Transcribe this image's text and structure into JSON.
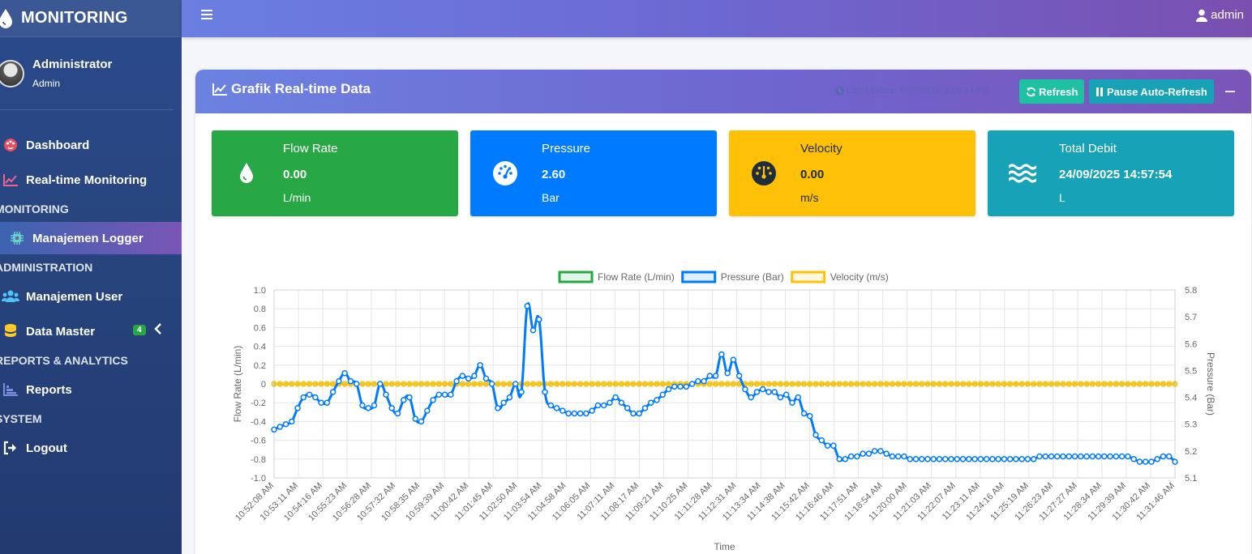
{
  "brand": {
    "title": "MONITORING"
  },
  "user_panel": {
    "name": "Administrator",
    "role": "Admin"
  },
  "nav": {
    "dashboard": "Dashboard",
    "realtime": "Real-time Monitoring",
    "header_monitoring": "MONITORING",
    "logger": "Manajemen Logger",
    "header_admin": "ADMINISTRATION",
    "users": "Manajemen User",
    "data_master": "Data Master",
    "data_master_badge": "4",
    "header_reports": "REPORTS & ANALYTICS",
    "reports": "Reports",
    "header_system": "SYSTEM",
    "logout": "Logout"
  },
  "topbar": {
    "user": "admin"
  },
  "card": {
    "title": "Grafik Real-time Data",
    "last_update": "Last Update: 9/24/2025, 2:58:14 PM",
    "refresh_label": "Refresh",
    "pause_label": "Pause Auto-Refresh"
  },
  "info": [
    {
      "label": "Flow Rate",
      "value": "0.00",
      "unit": "L/min",
      "color": "#28a745",
      "icon": "tint-icon"
    },
    {
      "label": "Pressure",
      "value": "2.60",
      "unit": "Bar",
      "color": "#007bff",
      "icon": "gauge-icon"
    },
    {
      "label": "Velocity",
      "value": "0.00",
      "unit": "m/s",
      "color": "#ffc107",
      "icon": "tachometer-icon"
    },
    {
      "label": "Total Debit",
      "value": "24/09/2025 14:57:54",
      "unit": "L",
      "color": "#17a2b8",
      "icon": "water-icon"
    }
  ],
  "chart_data": {
    "type": "line",
    "xlabel": "Time",
    "ylabel_left": "Flow Rate (L/min)",
    "ylabel_right": "Pressure (Bar)",
    "ylim_left": [
      -1.0,
      1.0
    ],
    "ylim_right": [
      5.1,
      5.8
    ],
    "left_ticks": [
      "1.0",
      "0.8",
      "0.6",
      "0.4",
      "0.2",
      "0",
      "-0.2",
      "-0.4",
      "-0.6",
      "-0.8",
      "-1.0"
    ],
    "right_ticks": [
      "5.8",
      "5.7",
      "5.6",
      "5.5",
      "5.4",
      "5.3",
      "5.2",
      "5.1"
    ],
    "x_tick_labels": [
      "10:52:08 AM",
      "10:53:11 AM",
      "10:54:16 AM",
      "10:55:23 AM",
      "10:56:28 AM",
      "10:57:32 AM",
      "10:58:35 AM",
      "10:59:39 AM",
      "11:00:42 AM",
      "11:01:45 AM",
      "11:02:50 AM",
      "11:03:54 AM",
      "11:04:58 AM",
      "11:06:05 AM",
      "11:07:11 AM",
      "11:08:17 AM",
      "11:09:21 AM",
      "11:10:25 AM",
      "11:11:28 AM",
      "11:12:31 AM",
      "11:13:34 AM",
      "11:14:38 AM",
      "11:15:42 AM",
      "11:16:46 AM",
      "11:17:51 AM",
      "11:18:54 AM",
      "11:20:00 AM",
      "11:21:03 AM",
      "11:22:07 AM",
      "11:23:11 AM",
      "11:24:16 AM",
      "11:25:19 AM",
      "11:26:23 AM",
      "11:27:27 AM",
      "11:28:34 AM",
      "11:29:39 AM",
      "11:30:42 AM",
      "11:31:46 AM"
    ],
    "legend": [
      {
        "name": "Flow Rate (L/min)",
        "color": "#28a745"
      },
      {
        "name": "Pressure (Bar)",
        "color": "#007bff"
      },
      {
        "name": "Velocity (m/s)",
        "color": "#ffc107"
      }
    ],
    "series": [
      {
        "name": "Flow Rate (L/min)",
        "axis": "left",
        "color": "#28a745",
        "constant": 0.0
      },
      {
        "name": "Velocity (m/s)",
        "axis": "left",
        "color": "#ffc107",
        "constant": 0.0
      },
      {
        "name": "Pressure (Bar)",
        "axis": "right",
        "color": "#007bff",
        "values": [
          5.28,
          5.29,
          5.3,
          5.31,
          5.36,
          5.4,
          5.41,
          5.4,
          5.38,
          5.38,
          5.42,
          5.46,
          5.49,
          5.46,
          5.45,
          5.37,
          5.36,
          5.37,
          5.45,
          5.41,
          5.36,
          5.34,
          5.39,
          5.4,
          5.32,
          5.31,
          5.35,
          5.39,
          5.41,
          5.41,
          5.41,
          5.46,
          5.48,
          5.47,
          5.48,
          5.52,
          5.47,
          5.45,
          5.36,
          5.38,
          5.4,
          5.45,
          5.42,
          5.74,
          5.65,
          5.69,
          5.42,
          5.37,
          5.36,
          5.35,
          5.34,
          5.34,
          5.34,
          5.34,
          5.35,
          5.37,
          5.37,
          5.38,
          5.4,
          5.38,
          5.36,
          5.34,
          5.34,
          5.36,
          5.38,
          5.39,
          5.41,
          5.43,
          5.44,
          5.44,
          5.44,
          5.45,
          5.46,
          5.46,
          5.48,
          5.48,
          5.56,
          5.49,
          5.54,
          5.48,
          5.43,
          5.4,
          5.42,
          5.43,
          5.42,
          5.42,
          5.4,
          5.41,
          5.38,
          5.4,
          5.34,
          5.33,
          5.26,
          5.24,
          5.22,
          5.22,
          5.17,
          5.17,
          5.18,
          5.18,
          5.19,
          5.19,
          5.2,
          5.2,
          5.19,
          5.18,
          5.18,
          5.18,
          5.17,
          5.17,
          5.17,
          5.17,
          5.17,
          5.17,
          5.17,
          5.17,
          5.17,
          5.17,
          5.17,
          5.17,
          5.17,
          5.17,
          5.17,
          5.17,
          5.17,
          5.17,
          5.17,
          5.17,
          5.17,
          5.17,
          5.18,
          5.18,
          5.18,
          5.18,
          5.18,
          5.18,
          5.18,
          5.18,
          5.18,
          5.18,
          5.18,
          5.18,
          5.18,
          5.18,
          5.18,
          5.18,
          5.17,
          5.16,
          5.16,
          5.16,
          5.17,
          5.18,
          5.18,
          5.16
        ]
      }
    ]
  }
}
